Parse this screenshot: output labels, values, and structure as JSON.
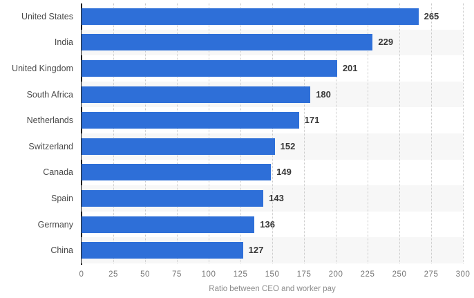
{
  "chart_data": {
    "type": "bar",
    "orientation": "horizontal",
    "categories": [
      "United States",
      "India",
      "United Kingdom",
      "South Africa",
      "Netherlands",
      "Switzerland",
      "Canada",
      "Spain",
      "Germany",
      "China"
    ],
    "values": [
      265,
      229,
      201,
      180,
      171,
      152,
      149,
      143,
      136,
      127
    ],
    "title": "",
    "xlabel": "Ratio between CEO and worker pay",
    "ylabel": "",
    "xlim": [
      0,
      300
    ],
    "xticks": [
      0,
      25,
      50,
      75,
      100,
      125,
      150,
      175,
      200,
      225,
      250,
      275,
      300
    ],
    "grid": "vertical-dotted",
    "legend": "none",
    "colors": {
      "bar": "#2e6fd8",
      "band_alt": "#f7f7f7",
      "axis_line": "#1f1f1f",
      "grid_line": "#c9c9c9",
      "category_label": "#4a4a4a",
      "value_label": "#383838",
      "tick_label": "#767676",
      "axis_title": "#8c8c8c",
      "background": "#ffffff"
    }
  }
}
